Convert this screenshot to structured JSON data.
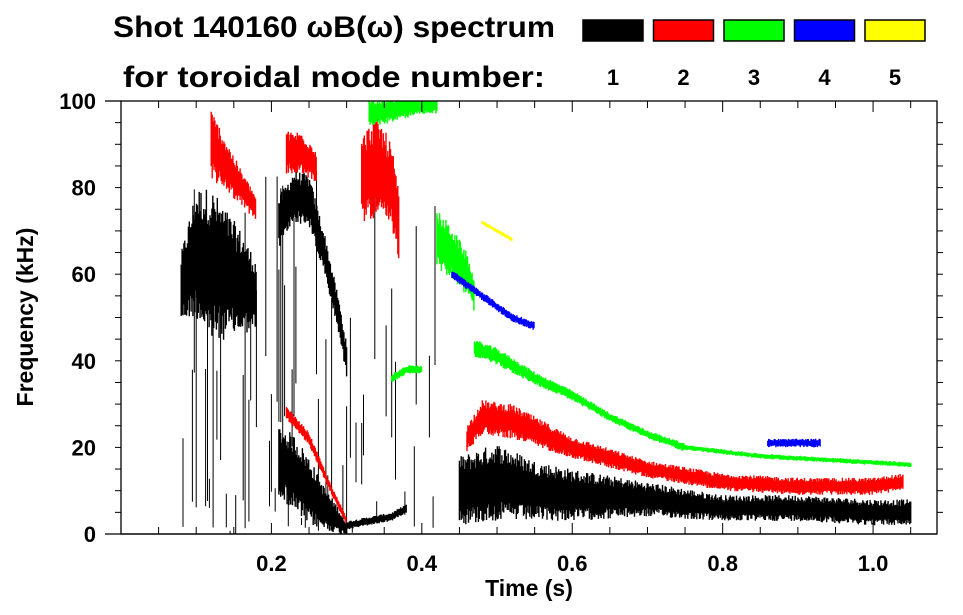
{
  "chart_data": {
    "type": "heatmap",
    "title": "Shot 140160 ωB(ω) spectrum",
    "subtitle": "for toroidal mode number:",
    "xlabel": "Time (s)",
    "ylabel": "Frequency (kHz)",
    "xlim": [
      0,
      1.085
    ],
    "ylim": [
      0,
      100
    ],
    "xticks": [
      0.2,
      0.4,
      0.6,
      0.8,
      1.0
    ],
    "xtick_labels": [
      "0.2",
      "0.4",
      "0.6",
      "0.8",
      "1.0"
    ],
    "yticks": [
      0,
      20,
      40,
      60,
      80,
      100
    ],
    "ytick_labels": [
      "0",
      "20",
      "40",
      "60",
      "80",
      "100"
    ],
    "grid": false,
    "legend": {
      "placement": "top-right",
      "entries": [
        {
          "label": "1",
          "color": "#000000"
        },
        {
          "label": "2",
          "color": "#ff0000"
        },
        {
          "label": "3",
          "color": "#00ff00"
        },
        {
          "label": "4",
          "color": "#0000ff"
        },
        {
          "label": "5",
          "color": "#ffff00"
        }
      ]
    },
    "features": [
      {
        "mode": 1,
        "t": [
          0.08,
          0.1,
          0.12,
          0.14,
          0.16,
          0.18
        ],
        "f": [
          57,
          65,
          62,
          60,
          58,
          55
        ],
        "hw": [
          8,
          15,
          18,
          15,
          12,
          8
        ]
      },
      {
        "mode": 1,
        "t": [
          0.21,
          0.23,
          0.25,
          0.27,
          0.29,
          0.3
        ],
        "f": [
          72,
          78,
          77,
          65,
          50,
          40
        ],
        "hw": [
          6,
          6,
          6,
          5,
          4,
          4
        ]
      },
      {
        "mode": 1,
        "t": [
          0.21,
          0.23,
          0.25,
          0.27,
          0.29,
          0.3
        ],
        "f": [
          17,
          14,
          10,
          6,
          3,
          1
        ],
        "hw": [
          8,
          9,
          8,
          5,
          3,
          1
        ]
      },
      {
        "mode": 1,
        "t": [
          0.3,
          0.33,
          0.36,
          0.38
        ],
        "f": [
          2,
          3,
          4,
          6
        ],
        "hw": [
          1,
          1,
          1,
          1
        ]
      },
      {
        "mode": 1,
        "t": [
          0.45,
          0.5,
          0.55,
          0.6,
          0.7,
          0.8,
          0.9,
          1.0,
          1.05
        ],
        "f": [
          10,
          12,
          10,
          9,
          8,
          6,
          6,
          5,
          5
        ],
        "hw": [
          8,
          9,
          7,
          6,
          4,
          3,
          3,
          3,
          3
        ]
      },
      {
        "mode": 1,
        "kind": "streaks",
        "t": [
          0.08,
          0.42
        ],
        "fmax": 85
      },
      {
        "mode": 2,
        "t": [
          0.12,
          0.14,
          0.16,
          0.18
        ],
        "f": [
          90,
          85,
          80,
          75
        ],
        "hw": [
          8,
          6,
          4,
          3
        ]
      },
      {
        "mode": 2,
        "t": [
          0.22,
          0.24,
          0.26
        ],
        "f": [
          88,
          88,
          85
        ],
        "hw": [
          5,
          5,
          4
        ]
      },
      {
        "mode": 2,
        "t": [
          0.32,
          0.34,
          0.36,
          0.37
        ],
        "f": [
          82,
          85,
          80,
          70
        ],
        "hw": [
          10,
          12,
          10,
          8
        ]
      },
      {
        "mode": 2,
        "t": [
          0.22,
          0.25,
          0.28,
          0.3
        ],
        "f": [
          28,
          22,
          10,
          3
        ],
        "hw": [
          1.5,
          1.5,
          1,
          1
        ]
      },
      {
        "mode": 2,
        "t": [
          0.46,
          0.48,
          0.52,
          0.6,
          0.7,
          0.8,
          0.9,
          1.0,
          1.04
        ],
        "f": [
          22,
          27,
          26,
          20,
          15,
          12,
          11,
          11,
          12
        ],
        "hw": [
          3,
          4,
          4,
          2.5,
          2,
          2,
          2,
          2,
          2
        ]
      },
      {
        "mode": 3,
        "t": [
          0.33,
          0.36,
          0.4,
          0.42
        ],
        "f": [
          97,
          98,
          99,
          99
        ],
        "hw": [
          3,
          3,
          2,
          2
        ]
      },
      {
        "mode": 3,
        "t": [
          0.42,
          0.44,
          0.46,
          0.47
        ],
        "f": [
          68,
          65,
          60,
          55
        ],
        "hw": [
          7,
          6,
          5,
          4
        ]
      },
      {
        "mode": 3,
        "t": [
          0.47,
          0.5,
          0.55,
          0.6,
          0.65,
          0.7,
          0.75
        ],
        "f": [
          43,
          41,
          36,
          32,
          27,
          23,
          20
        ],
        "hw": [
          2,
          2,
          1.5,
          1.2,
          1,
          1,
          1
        ]
      },
      {
        "mode": 3,
        "t": [
          0.36,
          0.38,
          0.4
        ],
        "f": [
          36,
          38,
          38
        ],
        "hw": [
          1,
          1,
          1
        ]
      },
      {
        "mode": 3,
        "t": [
          0.75,
          0.85,
          0.95,
          1.05
        ],
        "f": [
          20,
          18,
          17,
          16
        ],
        "hw": [
          0.6,
          0.6,
          0.6,
          0.6
        ]
      },
      {
        "mode": 4,
        "t": [
          0.44,
          0.48,
          0.52,
          0.55
        ],
        "f": [
          60,
          55,
          50,
          48
        ],
        "hw": [
          1,
          1,
          1,
          1
        ]
      },
      {
        "mode": 4,
        "t": [
          0.86,
          0.93
        ],
        "f": [
          21,
          21
        ],
        "hw": [
          1,
          1
        ]
      },
      {
        "mode": 5,
        "t": [
          0.48,
          0.52
        ],
        "f": [
          72,
          68
        ],
        "hw": [
          0.5,
          0.5
        ]
      }
    ]
  }
}
